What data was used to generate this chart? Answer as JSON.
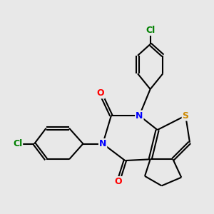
{
  "background_color": "#e8e8e8",
  "bond_color": "black",
  "bond_width": 1.5,
  "atom_colors": {
    "N": "blue",
    "O": "red",
    "S": "#cc8800",
    "Cl": "green",
    "C": "black"
  },
  "font_size_atom": 9
}
